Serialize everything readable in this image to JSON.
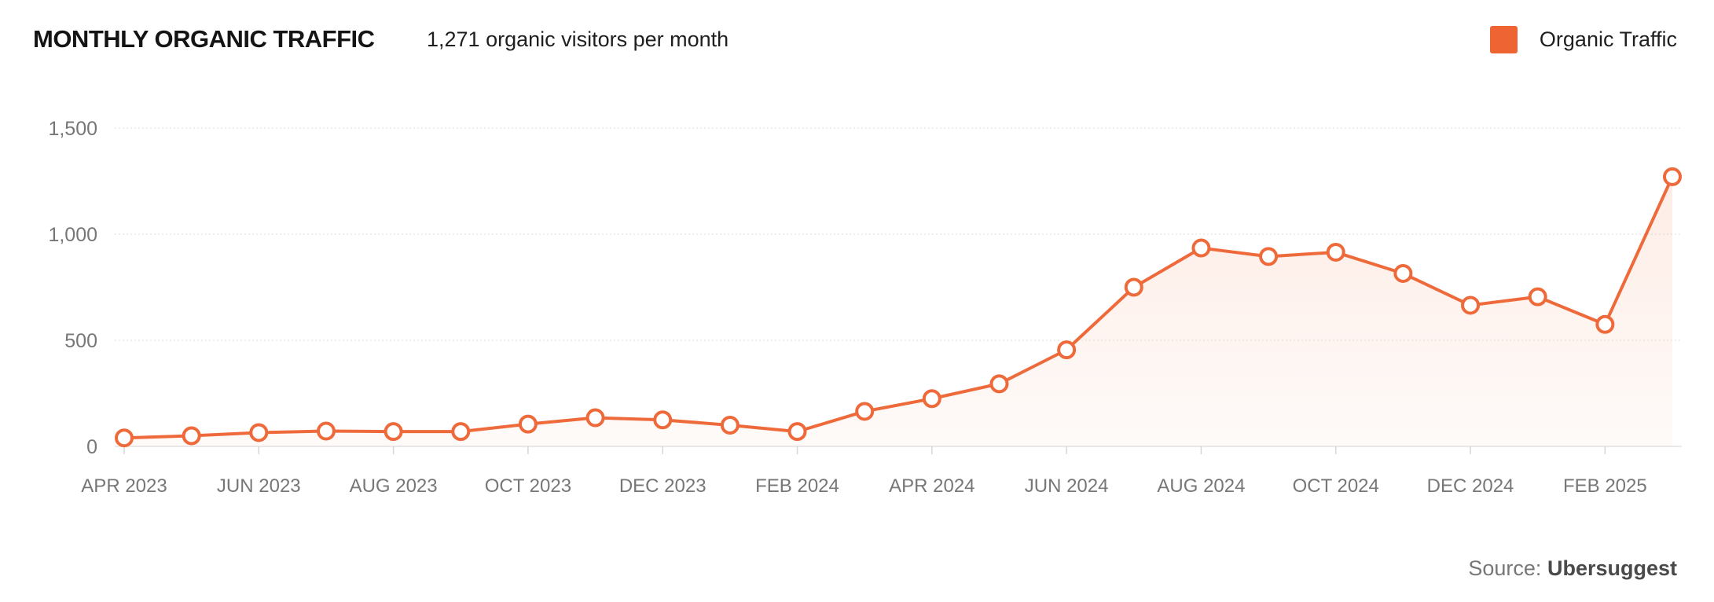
{
  "header": {
    "title": "MONTHLY ORGANIC TRAFFIC",
    "subtitle": "1,271 organic visitors per month"
  },
  "legend": {
    "label": "Organic Traffic"
  },
  "source": {
    "prefix": "Source:",
    "name": "Ubersuggest"
  },
  "colors": {
    "line": "#ef6a3a",
    "swatch": "#ef6433",
    "axis_text": "#777777",
    "grid": "#e9e9e9"
  },
  "chart_data": {
    "type": "area",
    "x": [
      "2023-04",
      "2023-05",
      "2023-06",
      "2023-07",
      "2023-08",
      "2023-09",
      "2023-10",
      "2023-11",
      "2023-12",
      "2024-01",
      "2024-02",
      "2024-03",
      "2024-04",
      "2024-05",
      "2024-06",
      "2024-07",
      "2024-08",
      "2024-09",
      "2024-10",
      "2024-11",
      "2024-12",
      "2025-01",
      "2025-02",
      "2025-03"
    ],
    "x_tick_labels": [
      "APR 2023",
      "",
      "JUN 2023",
      "",
      "AUG 2023",
      "",
      "OCT 2023",
      "",
      "DEC 2023",
      "",
      "FEB 2024",
      "",
      "APR 2024",
      "",
      "JUN 2024",
      "",
      "AUG 2024",
      "",
      "OCT 2024",
      "",
      "DEC 2024",
      "",
      "FEB 2025",
      ""
    ],
    "series": [
      {
        "name": "Organic Traffic",
        "values": [
          40,
          50,
          65,
          72,
          70,
          70,
          105,
          135,
          125,
          100,
          70,
          165,
          225,
          295,
          455,
          750,
          935,
          895,
          915,
          815,
          665,
          705,
          575,
          1271
        ]
      }
    ],
    "y_ticks": [
      0,
      500,
      1000,
      1500
    ],
    "y_tick_labels": [
      "0",
      "500",
      "1,000",
      "1,500"
    ],
    "ylim": [
      0,
      1500
    ],
    "grid": true,
    "legend_position": "top-right"
  }
}
